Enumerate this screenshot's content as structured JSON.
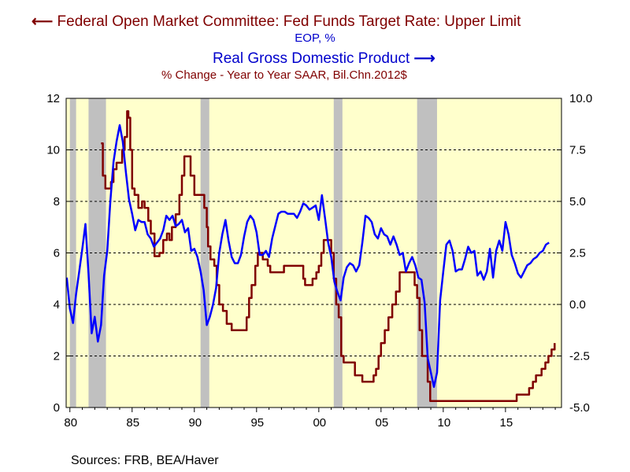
{
  "chart_data": {
    "type": "line",
    "title": "",
    "legend": [
      {
        "label": "Federal Open Market Committee: Fed Funds Target Rate: Upper Limit",
        "units": "EOP, %",
        "axis": "left",
        "color": "#800000",
        "arrow": "left"
      },
      {
        "label": "Real Gross Domestic Product",
        "units": "% Change - Year to Year    SAAR, Bil.Chn.2012$",
        "axis": "right",
        "color": "#0000ff",
        "arrow": "right"
      }
    ],
    "legend_arrows": {
      "left": "⟵",
      "right": "⟶"
    },
    "source": "Sources:  FRB, BEA/Haver",
    "x_axis": {
      "range": [
        1979.7,
        2019.5
      ],
      "ticks": [
        1980,
        1985,
        1990,
        1995,
        2000,
        2005,
        2010,
        2015
      ],
      "tick_labels": [
        "80",
        "85",
        "90",
        "95",
        "00",
        "05",
        "10",
        "15"
      ]
    },
    "y_left": {
      "range": [
        0,
        12
      ],
      "ticks": [
        0,
        2,
        4,
        6,
        8,
        10,
        12
      ],
      "tick_labels": [
        "0",
        "2",
        "4",
        "6",
        "8",
        "10",
        "12"
      ]
    },
    "y_right": {
      "range": [
        -5,
        10
      ],
      "ticks": [
        -5,
        -2.5,
        0,
        2.5,
        5,
        7.5,
        10
      ],
      "tick_labels": [
        "-5.0",
        "-2.5",
        "0.0",
        "2.5",
        "5.0",
        "7.5",
        "10.0"
      ]
    },
    "grid": "horizontal dashed",
    "background_color": "#ffffcc",
    "recession_color": "#c0c0c0",
    "recessions": [
      [
        1980.0,
        1980.5
      ],
      [
        1981.5,
        1982.9
      ],
      [
        1990.5,
        1991.2
      ],
      [
        2001.2,
        2001.9
      ],
      [
        2007.9,
        2009.5
      ]
    ],
    "series": [
      {
        "name": "Federal Open Market Committee: Fed Funds Target Rate: Upper Limit",
        "axis": "left",
        "color": "#800000",
        "step": true,
        "points": [
          [
            1982.5,
            10.25
          ],
          [
            1982.65,
            9.0
          ],
          [
            1982.85,
            8.5
          ],
          [
            1983.15,
            8.5
          ],
          [
            1983.3,
            8.75
          ],
          [
            1983.5,
            9.25
          ],
          [
            1983.75,
            9.5
          ],
          [
            1984.0,
            9.5
          ],
          [
            1984.2,
            10.0
          ],
          [
            1984.4,
            10.5
          ],
          [
            1984.6,
            11.5
          ],
          [
            1984.7,
            11.25
          ],
          [
            1984.85,
            10.0
          ],
          [
            1985.0,
            8.5
          ],
          [
            1985.2,
            8.25
          ],
          [
            1985.5,
            7.75
          ],
          [
            1985.8,
            8.0
          ],
          [
            1986.0,
            7.75
          ],
          [
            1986.3,
            7.25
          ],
          [
            1986.5,
            6.75
          ],
          [
            1986.8,
            5.875
          ],
          [
            1987.2,
            6.0
          ],
          [
            1987.5,
            6.5
          ],
          [
            1987.8,
            6.75
          ],
          [
            1988.0,
            6.5
          ],
          [
            1988.2,
            7.0
          ],
          [
            1988.5,
            7.5
          ],
          [
            1988.8,
            8.25
          ],
          [
            1989.0,
            9.0
          ],
          [
            1989.2,
            9.75
          ],
          [
            1989.5,
            9.75
          ],
          [
            1989.7,
            9.0
          ],
          [
            1990.0,
            8.25
          ],
          [
            1990.5,
            8.25
          ],
          [
            1990.8,
            7.75
          ],
          [
            1991.0,
            7.0
          ],
          [
            1991.1,
            6.25
          ],
          [
            1991.3,
            5.75
          ],
          [
            1991.6,
            5.5
          ],
          [
            1991.8,
            4.75
          ],
          [
            1992.0,
            4.0
          ],
          [
            1992.3,
            3.75
          ],
          [
            1992.6,
            3.25
          ],
          [
            1993.0,
            3.0
          ],
          [
            1993.5,
            3.0
          ],
          [
            1994.0,
            3.0
          ],
          [
            1994.2,
            3.5
          ],
          [
            1994.4,
            4.25
          ],
          [
            1994.6,
            4.75
          ],
          [
            1994.9,
            5.5
          ],
          [
            1995.1,
            6.0
          ],
          [
            1995.5,
            5.75
          ],
          [
            1995.9,
            5.5
          ],
          [
            1996.1,
            5.25
          ],
          [
            1997.0,
            5.25
          ],
          [
            1997.2,
            5.5
          ],
          [
            1998.5,
            5.5
          ],
          [
            1998.75,
            5.0
          ],
          [
            1998.9,
            4.75
          ],
          [
            1999.5,
            5.0
          ],
          [
            1999.8,
            5.25
          ],
          [
            2000.0,
            5.5
          ],
          [
            2000.2,
            6.0
          ],
          [
            2000.4,
            6.5
          ],
          [
            2000.9,
            6.5
          ],
          [
            2001.0,
            6.0
          ],
          [
            2001.2,
            5.0
          ],
          [
            2001.4,
            4.0
          ],
          [
            2001.6,
            3.5
          ],
          [
            2001.8,
            2.0
          ],
          [
            2002.0,
            1.75
          ],
          [
            2002.9,
            1.25
          ],
          [
            2003.5,
            1.0
          ],
          [
            2004.4,
            1.25
          ],
          [
            2004.6,
            1.5
          ],
          [
            2004.8,
            2.0
          ],
          [
            2005.0,
            2.5
          ],
          [
            2005.3,
            3.0
          ],
          [
            2005.6,
            3.5
          ],
          [
            2005.9,
            4.0
          ],
          [
            2006.2,
            4.5
          ],
          [
            2006.5,
            5.25
          ],
          [
            2007.6,
            5.25
          ],
          [
            2007.7,
            4.75
          ],
          [
            2007.9,
            4.25
          ],
          [
            2008.1,
            3.0
          ],
          [
            2008.3,
            2.0
          ],
          [
            2008.75,
            1.0
          ],
          [
            2008.95,
            0.25
          ],
          [
            2015.9,
            0.5
          ],
          [
            2016.9,
            0.75
          ],
          [
            2017.2,
            1.0
          ],
          [
            2017.45,
            1.25
          ],
          [
            2017.9,
            1.5
          ],
          [
            2018.2,
            1.75
          ],
          [
            2018.45,
            2.0
          ],
          [
            2018.7,
            2.25
          ],
          [
            2018.95,
            2.5
          ]
        ]
      },
      {
        "name": "Real Gross Domestic Product",
        "axis": "right",
        "color": "#0000ff",
        "step": false,
        "points": [
          [
            1979.75,
            1.3
          ],
          [
            1980.0,
            -0.2
          ],
          [
            1980.25,
            -0.9
          ],
          [
            1980.5,
            0.5
          ],
          [
            1980.75,
            1.6
          ],
          [
            1981.0,
            2.7
          ],
          [
            1981.25,
            3.9
          ],
          [
            1981.5,
            1.5
          ],
          [
            1981.75,
            -1.4
          ],
          [
            1982.0,
            -0.6
          ],
          [
            1982.25,
            -1.8
          ],
          [
            1982.5,
            -1.0
          ],
          [
            1982.75,
            1.4
          ],
          [
            1983.0,
            2.6
          ],
          [
            1983.25,
            5.0
          ],
          [
            1983.5,
            6.9
          ],
          [
            1983.75,
            7.9
          ],
          [
            1984.0,
            8.7
          ],
          [
            1984.25,
            7.9
          ],
          [
            1984.5,
            6.4
          ],
          [
            1984.75,
            5.1
          ],
          [
            1985.0,
            4.4
          ],
          [
            1985.25,
            3.6
          ],
          [
            1985.5,
            4.1
          ],
          [
            1985.75,
            4.0
          ],
          [
            1986.0,
            4.0
          ],
          [
            1986.25,
            3.4
          ],
          [
            1986.5,
            3.2
          ],
          [
            1986.75,
            2.8
          ],
          [
            1987.0,
            3.0
          ],
          [
            1987.25,
            3.2
          ],
          [
            1987.5,
            3.6
          ],
          [
            1987.75,
            4.3
          ],
          [
            1988.0,
            4.1
          ],
          [
            1988.25,
            4.3
          ],
          [
            1988.5,
            3.8
          ],
          [
            1988.75,
            3.9
          ],
          [
            1989.0,
            4.1
          ],
          [
            1989.25,
            3.5
          ],
          [
            1989.5,
            3.7
          ],
          [
            1989.75,
            2.6
          ],
          [
            1990.0,
            2.7
          ],
          [
            1990.25,
            2.3
          ],
          [
            1990.5,
            1.6
          ],
          [
            1990.75,
            0.7
          ],
          [
            1991.0,
            -1.0
          ],
          [
            1991.25,
            -0.6
          ],
          [
            1991.5,
            0.0
          ],
          [
            1991.75,
            0.8
          ],
          [
            1992.0,
            2.5
          ],
          [
            1992.25,
            3.4
          ],
          [
            1992.5,
            4.1
          ],
          [
            1992.75,
            3.1
          ],
          [
            1993.0,
            2.3
          ],
          [
            1993.25,
            2.0
          ],
          [
            1993.5,
            2.0
          ],
          [
            1993.75,
            2.4
          ],
          [
            1994.0,
            3.3
          ],
          [
            1994.25,
            4.0
          ],
          [
            1994.5,
            4.3
          ],
          [
            1994.75,
            4.1
          ],
          [
            1995.0,
            3.5
          ],
          [
            1995.25,
            2.4
          ],
          [
            1995.5,
            2.4
          ],
          [
            1995.75,
            2.6
          ],
          [
            1996.0,
            2.3
          ],
          [
            1996.25,
            3.2
          ],
          [
            1996.5,
            3.8
          ],
          [
            1996.75,
            4.4
          ],
          [
            1997.0,
            4.5
          ],
          [
            1997.25,
            4.5
          ],
          [
            1997.5,
            4.4
          ],
          [
            1997.75,
            4.4
          ],
          [
            1998.0,
            4.4
          ],
          [
            1998.25,
            4.2
          ],
          [
            1998.5,
            4.5
          ],
          [
            1998.75,
            4.9
          ],
          [
            1999.0,
            4.8
          ],
          [
            1999.25,
            4.6
          ],
          [
            1999.5,
            4.7
          ],
          [
            1999.75,
            4.8
          ],
          [
            2000.0,
            4.1
          ],
          [
            2000.25,
            5.3
          ],
          [
            2000.5,
            4.2
          ],
          [
            2000.75,
            3.0
          ],
          [
            2001.0,
            2.3
          ],
          [
            2001.25,
            1.1
          ],
          [
            2001.5,
            0.6
          ],
          [
            2001.75,
            0.2
          ],
          [
            2002.0,
            1.3
          ],
          [
            2002.25,
            1.8
          ],
          [
            2002.5,
            2.0
          ],
          [
            2002.75,
            1.9
          ],
          [
            2003.0,
            1.6
          ],
          [
            2003.25,
            1.9
          ],
          [
            2003.5,
            3.0
          ],
          [
            2003.75,
            4.3
          ],
          [
            2004.0,
            4.2
          ],
          [
            2004.25,
            4.0
          ],
          [
            2004.5,
            3.4
          ],
          [
            2004.75,
            3.2
          ],
          [
            2005.0,
            3.7
          ],
          [
            2005.25,
            3.4
          ],
          [
            2005.5,
            3.3
          ],
          [
            2005.75,
            2.9
          ],
          [
            2006.0,
            3.3
          ],
          [
            2006.25,
            2.9
          ],
          [
            2006.5,
            2.4
          ],
          [
            2006.75,
            2.5
          ],
          [
            2007.0,
            1.6
          ],
          [
            2007.25,
            2.0
          ],
          [
            2007.5,
            2.3
          ],
          [
            2007.75,
            1.9
          ],
          [
            2008.0,
            1.3
          ],
          [
            2008.25,
            1.2
          ],
          [
            2008.5,
            0.1
          ],
          [
            2008.75,
            -2.6
          ],
          [
            2009.0,
            -3.3
          ],
          [
            2009.25,
            -4.0
          ],
          [
            2009.5,
            -3.3
          ],
          [
            2009.75,
            0.2
          ],
          [
            2010.0,
            1.6
          ],
          [
            2010.25,
            2.9
          ],
          [
            2010.5,
            3.1
          ],
          [
            2010.75,
            2.6
          ],
          [
            2011.0,
            1.6
          ],
          [
            2011.25,
            1.7
          ],
          [
            2011.5,
            1.7
          ],
          [
            2011.75,
            2.2
          ],
          [
            2012.0,
            2.8
          ],
          [
            2012.25,
            2.5
          ],
          [
            2012.5,
            2.6
          ],
          [
            2012.75,
            1.4
          ],
          [
            2013.0,
            1.6
          ],
          [
            2013.25,
            1.2
          ],
          [
            2013.5,
            1.6
          ],
          [
            2013.75,
            2.7
          ],
          [
            2014.0,
            1.3
          ],
          [
            2014.25,
            2.6
          ],
          [
            2014.5,
            3.1
          ],
          [
            2014.75,
            2.6
          ],
          [
            2015.0,
            4.0
          ],
          [
            2015.25,
            3.4
          ],
          [
            2015.5,
            2.4
          ],
          [
            2015.75,
            2.0
          ],
          [
            2016.0,
            1.5
          ],
          [
            2016.25,
            1.3
          ],
          [
            2016.5,
            1.6
          ],
          [
            2016.75,
            1.9
          ],
          [
            2017.0,
            2.0
          ],
          [
            2017.25,
            2.2
          ],
          [
            2017.5,
            2.3
          ],
          [
            2017.75,
            2.5
          ],
          [
            2018.0,
            2.6
          ],
          [
            2018.25,
            2.9
          ],
          [
            2018.5,
            3.0
          ]
        ]
      }
    ]
  }
}
